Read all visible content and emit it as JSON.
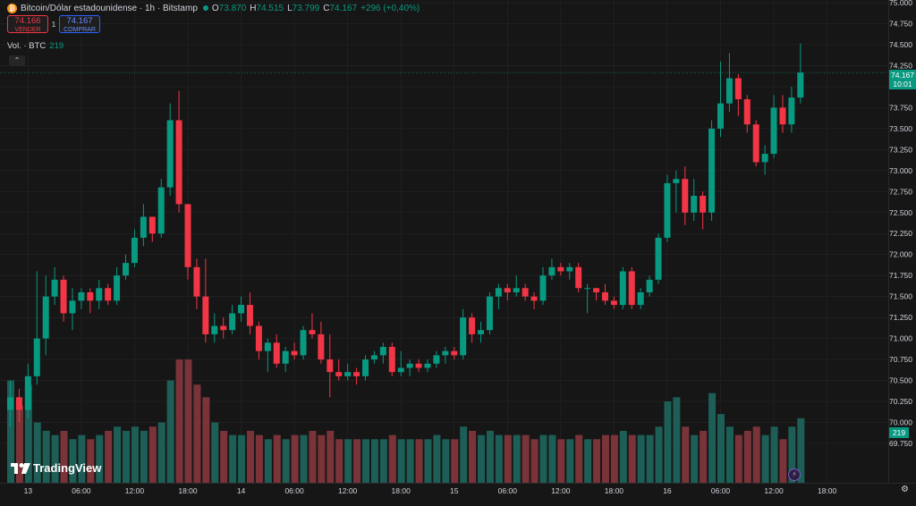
{
  "legend": {
    "symbol_icon": "bitcoin-icon",
    "title": "Bitcoin/Dólar estadounidense · 1h · Bitstamp",
    "open_key": "O",
    "open": "73.870",
    "high_key": "H",
    "high": "74.515",
    "low_key": "L",
    "low": "73.799",
    "close_key": "C",
    "close": "74.167",
    "change": "+296 (+0,40%)"
  },
  "trade": {
    "sell_price": "74.166",
    "sell_label": "VENDER",
    "spread": "1",
    "buy_price": "74.167",
    "buy_label": "COMPRAR"
  },
  "volume_legend": {
    "label": "Vol. · BTC",
    "value": "219"
  },
  "logo_text": "TradingView",
  "price_tag": {
    "price": "74.167",
    "countdown": "10:01"
  },
  "volume_tag": "219",
  "colors": {
    "up": "#089981",
    "down": "#f23645",
    "background": "#161616",
    "grid": "#262626"
  },
  "chart_data": {
    "type": "candlestick",
    "ylim": [
      69.6,
      75.0
    ],
    "y_ticks": [
      69.75,
      70.0,
      70.25,
      70.5,
      70.75,
      71.0,
      71.25,
      71.5,
      71.75,
      72.0,
      72.25,
      72.5,
      72.75,
      73.0,
      73.25,
      73.5,
      73.75,
      74.0,
      74.25,
      74.5,
      74.75,
      75.0
    ],
    "y_tick_labels": [
      "69.750",
      "70.000",
      "70.250",
      "70.500",
      "70.750",
      "71.000",
      "71.250",
      "71.500",
      "71.750",
      "72.000",
      "72.250",
      "72.500",
      "72.750",
      "73.000",
      "73.250",
      "73.500",
      "73.750",
      "74.000",
      "74.250",
      "74.500",
      "74.750",
      "75.000"
    ],
    "x_ticks": [
      {
        "index": 2,
        "label": "13"
      },
      {
        "index": 8,
        "label": "06:00"
      },
      {
        "index": 14,
        "label": "12:00"
      },
      {
        "index": 20,
        "label": "18:00"
      },
      {
        "index": 26,
        "label": "14"
      },
      {
        "index": 32,
        "label": "06:00"
      },
      {
        "index": 38,
        "label": "12:00"
      },
      {
        "index": 44,
        "label": "18:00"
      },
      {
        "index": 50,
        "label": "15"
      },
      {
        "index": 56,
        "label": "06:00"
      },
      {
        "index": 62,
        "label": "12:00"
      },
      {
        "index": 68,
        "label": "18:00"
      },
      {
        "index": 74,
        "label": "16"
      },
      {
        "index": 80,
        "label": "06:00"
      },
      {
        "index": 86,
        "label": "12:00"
      },
      {
        "index": 92,
        "label": "18:00"
      }
    ],
    "last_price_line": 74.167,
    "candles": [
      {
        "o": 70.15,
        "h": 70.5,
        "l": 69.95,
        "c": 70.3,
        "v": 70.5
      },
      {
        "o": 70.3,
        "h": 70.4,
        "l": 70.0,
        "c": 70.15,
        "v": 70.2
      },
      {
        "o": 70.15,
        "h": 70.7,
        "l": 70.05,
        "c": 70.55,
        "v": 70.45
      },
      {
        "o": 70.55,
        "h": 71.8,
        "l": 70.45,
        "c": 71.0,
        "v": 70.0
      },
      {
        "o": 71.0,
        "h": 71.75,
        "l": 70.8,
        "c": 71.5,
        "v": 69.9
      },
      {
        "o": 71.5,
        "h": 71.85,
        "l": 71.4,
        "c": 71.7,
        "v": 69.85
      },
      {
        "o": 71.7,
        "h": 71.75,
        "l": 71.2,
        "c": 71.3,
        "v": 69.9
      },
      {
        "o": 71.3,
        "h": 71.6,
        "l": 71.1,
        "c": 71.45,
        "v": 69.8
      },
      {
        "o": 71.45,
        "h": 71.6,
        "l": 71.35,
        "c": 71.55,
        "v": 69.85
      },
      {
        "o": 71.55,
        "h": 71.6,
        "l": 71.3,
        "c": 71.45,
        "v": 69.8
      },
      {
        "o": 71.45,
        "h": 71.7,
        "l": 71.35,
        "c": 71.6,
        "v": 69.85
      },
      {
        "o": 71.6,
        "h": 71.65,
        "l": 71.4,
        "c": 71.45,
        "v": 69.9
      },
      {
        "o": 71.45,
        "h": 71.85,
        "l": 71.4,
        "c": 71.75,
        "v": 69.95
      },
      {
        "o": 71.75,
        "h": 72.0,
        "l": 71.7,
        "c": 71.9,
        "v": 69.9
      },
      {
        "o": 71.9,
        "h": 72.3,
        "l": 71.85,
        "c": 72.2,
        "v": 69.95
      },
      {
        "o": 72.2,
        "h": 72.6,
        "l": 72.1,
        "c": 72.45,
        "v": 69.9
      },
      {
        "o": 72.45,
        "h": 72.45,
        "l": 72.15,
        "c": 72.25,
        "v": 69.95
      },
      {
        "o": 72.25,
        "h": 72.9,
        "l": 72.2,
        "c": 72.8,
        "v": 70.0
      },
      {
        "o": 72.8,
        "h": 73.8,
        "l": 72.7,
        "c": 73.6,
        "v": 70.5
      },
      {
        "o": 73.6,
        "h": 73.95,
        "l": 72.5,
        "c": 72.6,
        "v": 70.75
      },
      {
        "o": 72.6,
        "h": 72.6,
        "l": 71.7,
        "c": 71.85,
        "v": 70.75
      },
      {
        "o": 71.85,
        "h": 71.95,
        "l": 71.35,
        "c": 71.5,
        "v": 70.45
      },
      {
        "o": 71.5,
        "h": 71.95,
        "l": 70.95,
        "c": 71.05,
        "v": 70.3
      },
      {
        "o": 71.05,
        "h": 71.3,
        "l": 70.95,
        "c": 71.15,
        "v": 70.0
      },
      {
        "o": 71.15,
        "h": 71.25,
        "l": 71.0,
        "c": 71.1,
        "v": 69.9
      },
      {
        "o": 71.1,
        "h": 71.4,
        "l": 71.05,
        "c": 71.3,
        "v": 69.85
      },
      {
        "o": 71.3,
        "h": 71.5,
        "l": 71.2,
        "c": 71.4,
        "v": 69.85
      },
      {
        "o": 71.4,
        "h": 71.55,
        "l": 71.05,
        "c": 71.15,
        "v": 69.9
      },
      {
        "o": 71.15,
        "h": 71.2,
        "l": 70.75,
        "c": 70.85,
        "v": 69.85
      },
      {
        "o": 70.85,
        "h": 71.0,
        "l": 70.6,
        "c": 70.95,
        "v": 69.8
      },
      {
        "o": 70.95,
        "h": 71.05,
        "l": 70.65,
        "c": 70.7,
        "v": 69.85
      },
      {
        "o": 70.7,
        "h": 70.9,
        "l": 70.6,
        "c": 70.85,
        "v": 69.8
      },
      {
        "o": 70.85,
        "h": 70.95,
        "l": 70.75,
        "c": 70.8,
        "v": 69.85
      },
      {
        "o": 70.8,
        "h": 71.15,
        "l": 70.75,
        "c": 71.1,
        "v": 69.85
      },
      {
        "o": 71.1,
        "h": 71.3,
        "l": 71.0,
        "c": 71.05,
        "v": 69.9
      },
      {
        "o": 71.05,
        "h": 71.2,
        "l": 70.7,
        "c": 70.75,
        "v": 69.85
      },
      {
        "o": 70.75,
        "h": 71.05,
        "l": 70.3,
        "c": 70.6,
        "v": 69.9
      },
      {
        "o": 70.6,
        "h": 70.75,
        "l": 70.5,
        "c": 70.55,
        "v": 69.8
      },
      {
        "o": 70.55,
        "h": 70.7,
        "l": 70.5,
        "c": 70.6,
        "v": 69.8
      },
      {
        "o": 70.6,
        "h": 70.65,
        "l": 70.45,
        "c": 70.55,
        "v": 69.8
      },
      {
        "o": 70.55,
        "h": 70.8,
        "l": 70.5,
        "c": 70.75,
        "v": 69.8
      },
      {
        "o": 70.75,
        "h": 70.85,
        "l": 70.7,
        "c": 70.8,
        "v": 69.8
      },
      {
        "o": 70.8,
        "h": 70.95,
        "l": 70.7,
        "c": 70.9,
        "v": 69.8
      },
      {
        "o": 70.9,
        "h": 70.95,
        "l": 70.55,
        "c": 70.6,
        "v": 69.85
      },
      {
        "o": 70.6,
        "h": 70.85,
        "l": 70.55,
        "c": 70.65,
        "v": 69.8
      },
      {
        "o": 70.65,
        "h": 70.75,
        "l": 70.55,
        "c": 70.7,
        "v": 69.8
      },
      {
        "o": 70.7,
        "h": 70.75,
        "l": 70.6,
        "c": 70.65,
        "v": 69.8
      },
      {
        "o": 70.65,
        "h": 70.75,
        "l": 70.6,
        "c": 70.7,
        "v": 69.8
      },
      {
        "o": 70.7,
        "h": 70.85,
        "l": 70.65,
        "c": 70.8,
        "v": 69.85
      },
      {
        "o": 70.8,
        "h": 70.9,
        "l": 70.7,
        "c": 70.85,
        "v": 69.8
      },
      {
        "o": 70.85,
        "h": 70.9,
        "l": 70.75,
        "c": 70.8,
        "v": 69.8
      },
      {
        "o": 70.8,
        "h": 71.35,
        "l": 70.75,
        "c": 71.25,
        "v": 69.95
      },
      {
        "o": 71.25,
        "h": 71.3,
        "l": 70.95,
        "c": 71.05,
        "v": 69.9
      },
      {
        "o": 71.05,
        "h": 71.2,
        "l": 70.95,
        "c": 71.1,
        "v": 69.85
      },
      {
        "o": 71.1,
        "h": 71.55,
        "l": 71.05,
        "c": 71.5,
        "v": 69.9
      },
      {
        "o": 71.5,
        "h": 71.65,
        "l": 71.35,
        "c": 71.6,
        "v": 69.85
      },
      {
        "o": 71.6,
        "h": 71.65,
        "l": 71.45,
        "c": 71.55,
        "v": 69.85
      },
      {
        "o": 71.55,
        "h": 71.75,
        "l": 71.5,
        "c": 71.6,
        "v": 69.85
      },
      {
        "o": 71.6,
        "h": 71.65,
        "l": 71.45,
        "c": 71.5,
        "v": 69.85
      },
      {
        "o": 71.5,
        "h": 71.55,
        "l": 71.35,
        "c": 71.45,
        "v": 69.8
      },
      {
        "o": 71.45,
        "h": 71.85,
        "l": 71.4,
        "c": 71.75,
        "v": 69.85
      },
      {
        "o": 71.75,
        "h": 71.95,
        "l": 71.7,
        "c": 71.85,
        "v": 69.85
      },
      {
        "o": 71.85,
        "h": 71.9,
        "l": 71.75,
        "c": 71.8,
        "v": 69.8
      },
      {
        "o": 71.8,
        "h": 71.9,
        "l": 71.7,
        "c": 71.85,
        "v": 69.8
      },
      {
        "o": 71.85,
        "h": 71.9,
        "l": 71.55,
        "c": 71.6,
        "v": 69.85
      },
      {
        "o": 71.6,
        "h": 71.65,
        "l": 71.3,
        "c": 71.6,
        "v": 69.8
      },
      {
        "o": 71.6,
        "h": 71.6,
        "l": 71.45,
        "c": 71.55,
        "v": 69.8
      },
      {
        "o": 71.55,
        "h": 71.65,
        "l": 71.4,
        "c": 71.45,
        "v": 69.85
      },
      {
        "o": 71.45,
        "h": 71.5,
        "l": 71.35,
        "c": 71.4,
        "v": 69.85
      },
      {
        "o": 71.4,
        "h": 71.85,
        "l": 71.35,
        "c": 71.8,
        "v": 69.9
      },
      {
        "o": 71.8,
        "h": 71.85,
        "l": 71.35,
        "c": 71.4,
        "v": 69.85
      },
      {
        "o": 71.4,
        "h": 71.6,
        "l": 71.35,
        "c": 71.55,
        "v": 69.85
      },
      {
        "o": 71.55,
        "h": 71.75,
        "l": 71.5,
        "c": 71.7,
        "v": 69.85
      },
      {
        "o": 71.7,
        "h": 72.25,
        "l": 71.65,
        "c": 72.2,
        "v": 69.95
      },
      {
        "o": 72.2,
        "h": 72.95,
        "l": 72.15,
        "c": 72.85,
        "v": 70.25
      },
      {
        "o": 72.85,
        "h": 73.0,
        "l": 72.5,
        "c": 72.9,
        "v": 70.3
      },
      {
        "o": 72.9,
        "h": 73.05,
        "l": 72.35,
        "c": 72.5,
        "v": 69.95
      },
      {
        "o": 72.5,
        "h": 72.9,
        "l": 72.4,
        "c": 72.7,
        "v": 69.85
      },
      {
        "o": 72.7,
        "h": 72.75,
        "l": 72.3,
        "c": 72.5,
        "v": 69.9
      },
      {
        "o": 72.5,
        "h": 73.6,
        "l": 72.4,
        "c": 73.5,
        "v": 70.35
      },
      {
        "o": 73.5,
        "h": 74.3,
        "l": 73.4,
        "c": 73.8,
        "v": 70.1
      },
      {
        "o": 73.8,
        "h": 74.4,
        "l": 73.7,
        "c": 74.1,
        "v": 69.95
      },
      {
        "o": 74.1,
        "h": 74.15,
        "l": 73.65,
        "c": 73.85,
        "v": 69.85
      },
      {
        "o": 73.85,
        "h": 73.9,
        "l": 73.45,
        "c": 73.55,
        "v": 69.9
      },
      {
        "o": 73.55,
        "h": 73.6,
        "l": 73.05,
        "c": 73.1,
        "v": 69.95
      },
      {
        "o": 73.1,
        "h": 73.3,
        "l": 72.95,
        "c": 73.2,
        "v": 69.85
      },
      {
        "o": 73.2,
        "h": 73.9,
        "l": 73.15,
        "c": 73.75,
        "v": 69.95
      },
      {
        "o": 73.75,
        "h": 73.9,
        "l": 73.45,
        "c": 73.55,
        "v": 69.8
      },
      {
        "o": 73.55,
        "h": 74.0,
        "l": 73.45,
        "c": 73.87,
        "v": 69.95
      },
      {
        "o": 73.87,
        "h": 74.515,
        "l": 73.799,
        "c": 74.167,
        "v": 70.05
      }
    ]
  }
}
